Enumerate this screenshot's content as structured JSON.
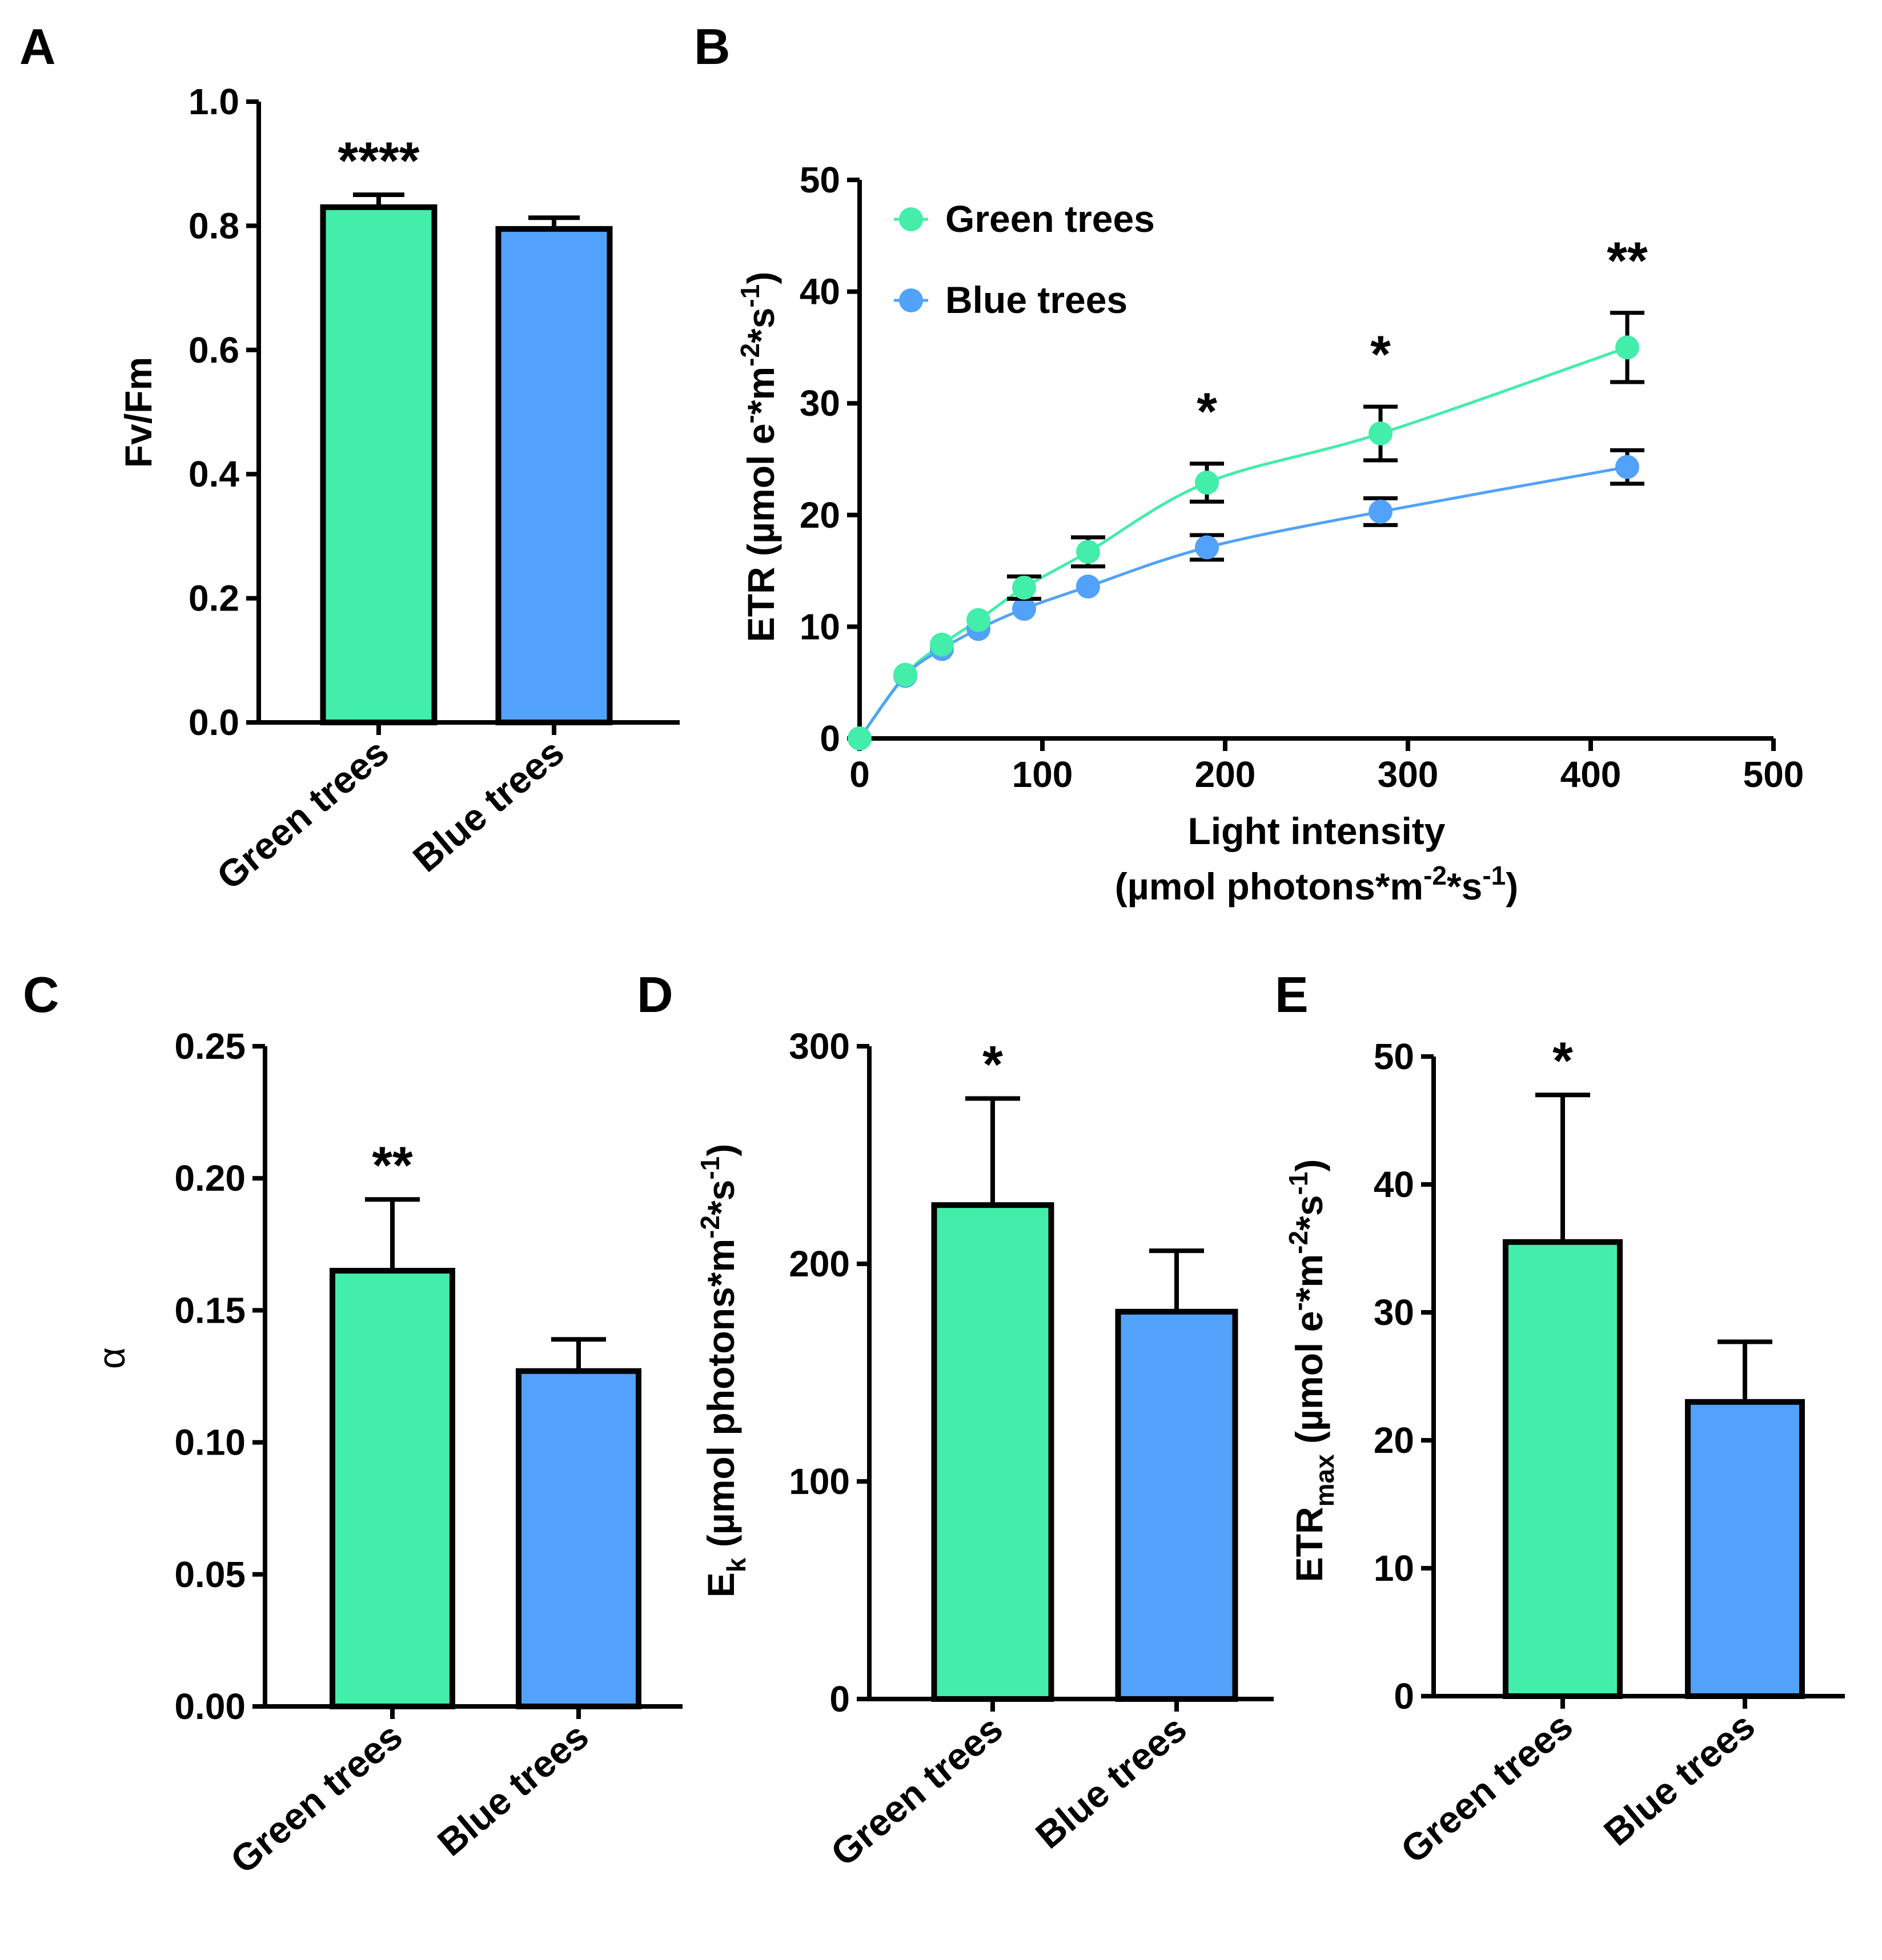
{
  "colors": {
    "green": "#43EDAA",
    "blue": "#52A1FA"
  },
  "chart_data": [
    {
      "panel": "A",
      "type": "bar",
      "categories": [
        "Green trees",
        "Blue trees"
      ],
      "values": [
        0.83,
        0.795
      ],
      "errors": [
        0.02,
        0.018
      ],
      "significance": [
        "****",
        ""
      ],
      "ylabel": "Fv/Fm",
      "ylim": [
        0,
        1.0
      ],
      "yticks": [
        0.0,
        0.2,
        0.4,
        0.6,
        0.8,
        1.0
      ],
      "ytick_labels": [
        "0.0",
        "0.2",
        "0.4",
        "0.6",
        "0.8",
        "1.0"
      ]
    },
    {
      "panel": "B",
      "type": "line",
      "xlabel_line1": "Light intensity",
      "xlabel_line2": "(µmol photons*m-2*s-1)",
      "xlabel_base": "(µmol photons*m",
      "xlabel_sup1": "-2",
      "xlabel_mid": "*s",
      "xlabel_sup2": "-1",
      "xlabel_end": ")",
      "ylabel": "ETR (µmol e-*m-2*s-1)",
      "ylabel_base": "ETR (µmol e",
      "ylabel_sup0": "-",
      "ylabel_mid1": "*m",
      "ylabel_sup1": "-2",
      "ylabel_mid2": "*s",
      "ylabel_sup2": "-1",
      "ylabel_end": ")",
      "xlim": [
        0,
        500
      ],
      "ylim": [
        0,
        50
      ],
      "xticks": [
        0,
        100,
        200,
        300,
        400,
        500
      ],
      "xtick_labels": [
        "0",
        "100",
        "200",
        "300",
        "400",
        "500"
      ],
      "yticks": [
        0,
        10,
        20,
        30,
        40,
        50
      ],
      "ytick_labels": [
        "0",
        "10",
        "20",
        "30",
        "40",
        "50"
      ],
      "series": [
        {
          "name": "Green trees",
          "x": [
            0,
            25,
            45,
            65,
            90,
            125,
            190,
            285,
            420
          ],
          "y": [
            0,
            5.7,
            8.4,
            10.6,
            13.5,
            16.7,
            22.9,
            27.3,
            35.0
          ],
          "err": [
            0,
            0.3,
            0.4,
            0.5,
            1.0,
            1.3,
            1.7,
            2.4,
            3.1
          ]
        },
        {
          "name": "Blue trees",
          "x": [
            0,
            25,
            45,
            65,
            90,
            125,
            190,
            285,
            420
          ],
          "y": [
            0,
            5.6,
            8.0,
            9.8,
            11.6,
            13.6,
            17.1,
            20.3,
            24.3
          ],
          "err": [
            0,
            0.3,
            0.4,
            0.4,
            0.5,
            0.5,
            1.1,
            1.2,
            1.5
          ]
        }
      ],
      "significance": [
        {
          "x": 190,
          "label": "*"
        },
        {
          "x": 285,
          "label": "*"
        },
        {
          "x": 420,
          "label": "**"
        }
      ],
      "legend": [
        "Green trees",
        "Blue trees"
      ]
    },
    {
      "panel": "C",
      "type": "bar",
      "categories": [
        "Green trees",
        "Blue trees"
      ],
      "values": [
        0.165,
        0.127
      ],
      "errors": [
        0.027,
        0.012
      ],
      "significance": [
        "**",
        ""
      ],
      "ylabel": "α",
      "ylim": [
        0,
        0.25
      ],
      "yticks": [
        0,
        0.05,
        0.1,
        0.15,
        0.2,
        0.25
      ],
      "ytick_labels": [
        "0.00",
        "0.05",
        "0.10",
        "0.15",
        "0.20",
        "0.25"
      ]
    },
    {
      "panel": "D",
      "type": "bar",
      "categories": [
        "Green trees",
        "Blue trees"
      ],
      "values": [
        227,
        178
      ],
      "errors": [
        49,
        28
      ],
      "significance": [
        "*",
        ""
      ],
      "ylabel": "Ek (µmol photons*m-2*s-1)",
      "ylabel_base": "E",
      "ylabel_sub": "k",
      "ylabel_mid": " (µmol photons*m",
      "ylabel_sup1": "-2",
      "ylabel_mid2": "*s",
      "ylabel_sup2": "-1",
      "ylabel_end": ")",
      "ylim": [
        0,
        300
      ],
      "yticks": [
        0,
        100,
        200,
        300
      ],
      "ytick_labels": [
        "0",
        "100",
        "200",
        "300"
      ]
    },
    {
      "panel": "E",
      "type": "bar",
      "categories": [
        "Green trees",
        "Blue trees"
      ],
      "values": [
        35.5,
        23.0
      ],
      "errors": [
        11.5,
        4.7
      ],
      "significance": [
        "*",
        ""
      ],
      "ylabel": "ETRmax (µmol e-*m-2*s-1)",
      "ylabel_base": "ETR",
      "ylabel_sub": "max",
      "ylabel_mid": " (µmol e",
      "ylabel_sup0": "-",
      "ylabel_mid1": "*m",
      "ylabel_sup1": "-2",
      "ylabel_mid2": "*s",
      "ylabel_sup2": "-1",
      "ylabel_end": ")",
      "ylim": [
        0,
        50
      ],
      "yticks": [
        0,
        10,
        20,
        30,
        40,
        50
      ],
      "ytick_labels": [
        "0",
        "10",
        "20",
        "30",
        "40",
        "50"
      ]
    }
  ]
}
